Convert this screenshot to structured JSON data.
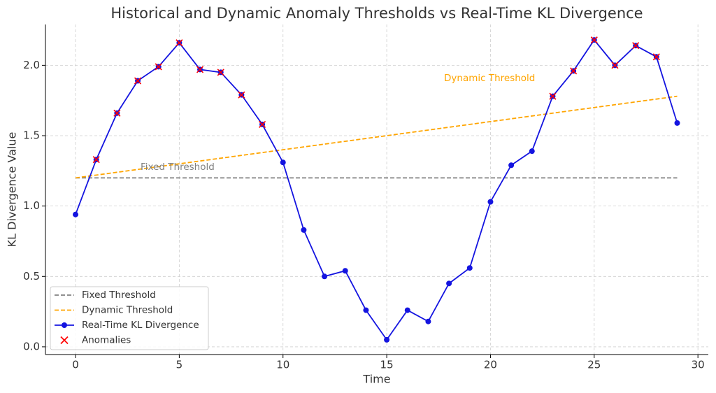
{
  "chart_data": {
    "type": "line",
    "title": "Historical and Dynamic Anomaly Thresholds vs Real-Time KL Divergence",
    "x_label": "Time",
    "y_label": "KL Divergence Value",
    "xlim": [
      -1.45,
      30.5
    ],
    "ylim": [
      -0.055,
      2.29
    ],
    "xticks": [
      0,
      5,
      10,
      15,
      20,
      25,
      30
    ],
    "yticks": [
      {
        "value": 0,
        "label": "0.0"
      },
      0.5,
      {
        "value": 1,
        "label": "1.0"
      },
      1.5,
      {
        "value": 2,
        "label": "2.0"
      }
    ],
    "grid": true,
    "legend": "lower left",
    "annotations": [
      "Fixed Threshold",
      "Dynamic Threshold"
    ],
    "series": [
      {
        "name": "Fixed Threshold",
        "color": "#808080",
        "kind": "line",
        "dash": true,
        "x": [
          0,
          29
        ],
        "values": [
          1.2,
          1.2
        ]
      },
      {
        "name": "Dynamic Threshold",
        "color": "#ffa500",
        "kind": "line",
        "dash": true,
        "x": [
          0,
          29
        ],
        "values": [
          1.2,
          1.78
        ]
      },
      {
        "name": "Real-Time KL Divergence",
        "color": "#1414e0",
        "kind": "line-marker",
        "dash": false,
        "x": [
          0,
          1,
          2,
          3,
          4,
          5,
          6,
          7,
          8,
          9,
          10,
          11,
          12,
          13,
          14,
          15,
          16,
          17,
          18,
          19,
          20,
          21,
          22,
          23,
          24,
          25,
          26,
          27,
          28,
          29
        ],
        "values": [
          0.94,
          1.33,
          1.66,
          1.89,
          1.99,
          2.16,
          1.97,
          1.95,
          1.79,
          1.58,
          1.31,
          0.83,
          0.5,
          0.54,
          0.26,
          0.05,
          0.26,
          0.18,
          0.45,
          0.56,
          1.03,
          1.29,
          1.39,
          1.78,
          1.96,
          2.18,
          2.0,
          2.14,
          2.06,
          1.59
        ]
      },
      {
        "name": "Anomalies",
        "color": "#ff0000",
        "kind": "scatter-x",
        "dash": false,
        "x": [
          1,
          2,
          3,
          4,
          5,
          6,
          7,
          8,
          9,
          23,
          24,
          25,
          26,
          27,
          28
        ],
        "values": [
          1.33,
          1.66,
          1.89,
          1.99,
          2.16,
          1.97,
          1.95,
          1.79,
          1.58,
          1.78,
          1.96,
          2.18,
          2.0,
          2.14,
          2.06
        ]
      }
    ]
  }
}
